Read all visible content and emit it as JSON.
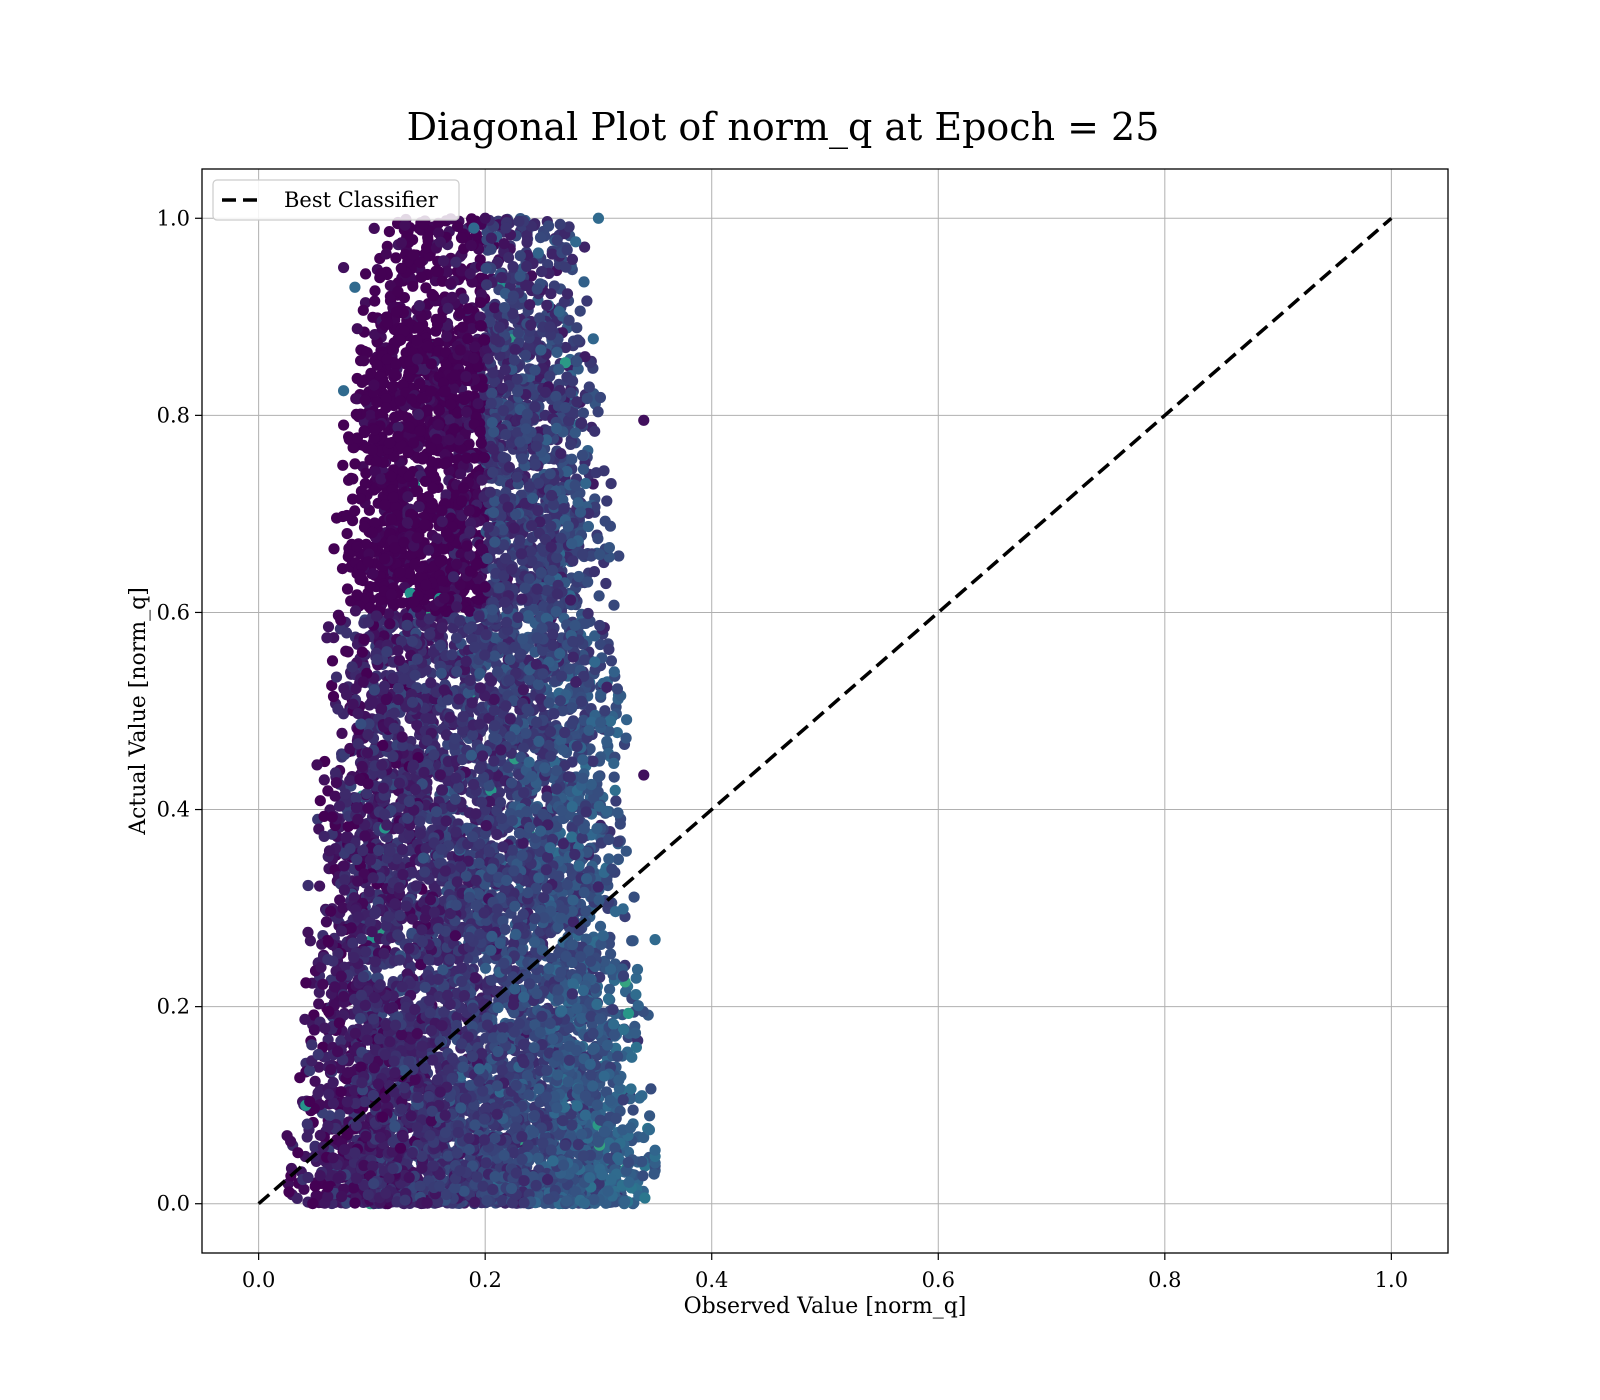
{
  "chart_data": {
    "type": "scatter",
    "title": "Diagonal Plot of norm_q at Epoch = 25",
    "xlabel": "Observed Value [norm_q]",
    "ylabel": "Actual Value [norm_q]",
    "xlim": [
      -0.05,
      1.05
    ],
    "ylim": [
      -0.05,
      1.05
    ],
    "xticks": [
      0.0,
      0.2,
      0.4,
      0.6,
      0.8,
      1.0
    ],
    "yticks": [
      0.0,
      0.2,
      0.4,
      0.6,
      0.8,
      1.0
    ],
    "xtick_labels": [
      "0.0",
      "0.2",
      "0.4",
      "0.6",
      "0.8",
      "1.0"
    ],
    "ytick_labels": [
      "0.0",
      "0.2",
      "0.4",
      "0.6",
      "0.8",
      "1.0"
    ],
    "grid": true,
    "legend_position": "top-left",
    "colors": {
      "viridis_dark": "#440154",
      "viridis_mid": "#31688e",
      "viridis_teal": "#21908d",
      "viridis_green": "#5ec962",
      "line": "#000000",
      "grid": "#b0b0b0"
    },
    "series": [
      {
        "kind": "scatter",
        "colormap": "viridis",
        "approx_point_count": 9000,
        "x_range": [
          0.02,
          0.35
        ],
        "y_range": [
          0.0,
          1.0
        ],
        "highlighted_points": [
          {
            "x": 0.2,
            "y": 1.0
          },
          {
            "x": 0.3,
            "y": 1.0
          },
          {
            "x": 0.19,
            "y": 0.99
          },
          {
            "x": 0.075,
            "y": 0.95
          },
          {
            "x": 0.085,
            "y": 0.93
          },
          {
            "x": 0.075,
            "y": 0.825
          },
          {
            "x": 0.34,
            "y": 0.795
          },
          {
            "x": 0.35,
            "y": 0.268
          },
          {
            "x": 0.345,
            "y": 0.075
          },
          {
            "x": 0.34,
            "y": 0.435
          }
        ]
      },
      {
        "kind": "line",
        "name": "Best Classifier",
        "style": "dashed",
        "x": [
          0.0,
          1.0
        ],
        "y": [
          0.0,
          1.0
        ]
      }
    ]
  }
}
